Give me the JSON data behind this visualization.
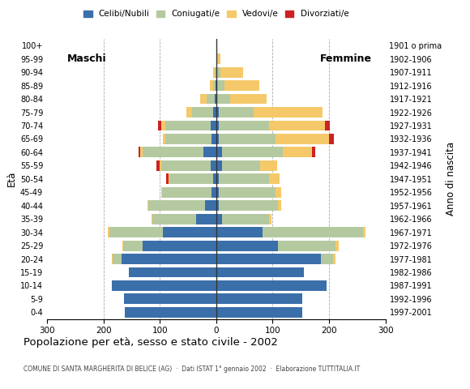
{
  "age_groups": [
    "0-4",
    "5-9",
    "10-14",
    "15-19",
    "20-24",
    "25-29",
    "30-34",
    "35-39",
    "40-44",
    "45-49",
    "50-54",
    "55-59",
    "60-64",
    "65-69",
    "70-74",
    "75-79",
    "80-84",
    "85-89",
    "90-94",
    "95-99",
    "100+"
  ],
  "birth_years": [
    "1997-2001",
    "1992-1996",
    "1987-1991",
    "1982-1986",
    "1977-1981",
    "1972-1976",
    "1967-1971",
    "1962-1966",
    "1957-1961",
    "1952-1956",
    "1947-1951",
    "1942-1946",
    "1937-1941",
    "1932-1936",
    "1927-1931",
    "1922-1926",
    "1917-1921",
    "1912-1916",
    "1907-1911",
    "1902-1906",
    "1901 o prima"
  ],
  "males": {
    "celibi": [
      162,
      163,
      185,
      155,
      168,
      130,
      95,
      35,
      20,
      8,
      5,
      10,
      22,
      8,
      10,
      5,
      2,
      1,
      0,
      0,
      0
    ],
    "coniugati": [
      0,
      0,
      0,
      0,
      15,
      35,
      95,
      78,
      100,
      88,
      78,
      88,
      108,
      82,
      80,
      38,
      15,
      5,
      2,
      0,
      0
    ],
    "vedovi": [
      0,
      0,
      0,
      0,
      2,
      2,
      2,
      2,
      2,
      2,
      2,
      3,
      5,
      5,
      8,
      10,
      12,
      5,
      3,
      0,
      0
    ],
    "divorziati": [
      0,
      0,
      0,
      0,
      0,
      0,
      0,
      0,
      0,
      0,
      4,
      5,
      2,
      0,
      5,
      0,
      0,
      0,
      0,
      0,
      0
    ]
  },
  "females": {
    "nubili": [
      152,
      153,
      195,
      155,
      185,
      110,
      82,
      10,
      5,
      5,
      5,
      10,
      10,
      5,
      5,
      5,
      2,
      2,
      2,
      0,
      0
    ],
    "coniugate": [
      0,
      0,
      0,
      0,
      22,
      102,
      178,
      83,
      105,
      100,
      88,
      68,
      108,
      100,
      88,
      62,
      22,
      12,
      5,
      2,
      0
    ],
    "vedove": [
      0,
      0,
      0,
      0,
      5,
      5,
      5,
      5,
      5,
      10,
      20,
      30,
      52,
      95,
      100,
      122,
      65,
      62,
      40,
      5,
      0
    ],
    "divorziate": [
      0,
      0,
      0,
      0,
      0,
      0,
      0,
      0,
      0,
      0,
      0,
      0,
      5,
      8,
      8,
      0,
      0,
      0,
      0,
      0,
      0
    ]
  },
  "colors": {
    "celibi": "#3b6faa",
    "coniugati": "#b5c9a0",
    "vedovi": "#f5c96a",
    "divorziati": "#cc2222"
  },
  "title": "Popolazione per età, sesso e stato civile - 2002",
  "subtitle": "COMUNE DI SANTA MARGHERITA DI BELICE (AG)  ·  Dati ISTAT 1° gennaio 2002  ·  Elaborazione TUTTITALIA.IT",
  "xlabel_left": "Maschi",
  "xlabel_right": "Femmine",
  "ylabel": "Età",
  "ylabel_right": "Anno di nascita",
  "xlim": 300,
  "legend_labels": [
    "Celibi/Nubili",
    "Coniugati/e",
    "Vedovi/e",
    "Divorziati/e"
  ],
  "background_color": "#ffffff",
  "grid_color": "#aaaaaa"
}
